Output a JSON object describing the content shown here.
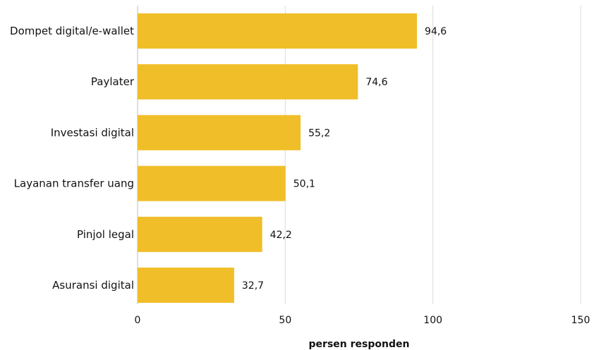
{
  "chart_data": {
    "type": "bar",
    "orientation": "horizontal",
    "categories": [
      "Dompet digital/e-wallet",
      "Paylater",
      "Investasi digital",
      "Layanan transfer uang",
      "Pinjol legal",
      "Asuransi digital"
    ],
    "values": [
      94.6,
      74.6,
      55.2,
      50.1,
      42.2,
      32.7
    ],
    "value_labels": [
      "94,6",
      "74,6",
      "55,2",
      "50,1",
      "42,2",
      "32,7"
    ],
    "title": "",
    "xlabel": "persen responden",
    "ylabel": "",
    "xlim": [
      0,
      150
    ],
    "x_ticks": [
      0,
      50,
      100,
      150
    ],
    "x_tick_labels": [
      "0",
      "50",
      "100",
      "150"
    ],
    "grid": "vertical",
    "legend": "none",
    "bar_color": "#F0BE28",
    "grid_color": "#dcdcdc"
  }
}
